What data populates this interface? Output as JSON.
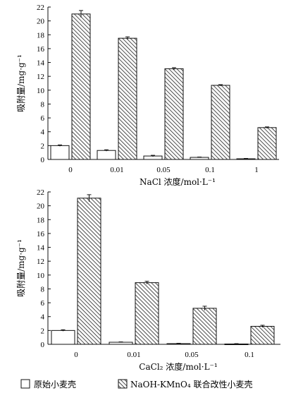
{
  "colors": {
    "axis": "#111111",
    "bar_plain_fill": "#ffffff",
    "bar_hatch": "#222222"
  },
  "legend": {
    "items": [
      {
        "label": "原始小麦壳",
        "style": "plain"
      },
      {
        "label": "NaOH-KMnO₄ 联合改性小麦壳",
        "style": "hatched"
      }
    ]
  },
  "chart_data": [
    {
      "type": "bar",
      "categories": [
        "0",
        "0.01",
        "0.05",
        "0.1",
        "1"
      ],
      "series": [
        {
          "name": "原始小麦壳",
          "values": [
            2.0,
            1.3,
            0.5,
            0.3,
            0.1
          ],
          "errors": [
            0.1,
            0.1,
            0.1,
            0.05,
            0.05
          ]
        },
        {
          "name": "NaOH-KMnO₄ 联合改性小麦壳",
          "values": [
            21.0,
            17.5,
            13.1,
            10.7,
            4.6
          ],
          "errors": [
            0.5,
            0.2,
            0.15,
            0.1,
            0.1
          ]
        }
      ],
      "xlabel": "NaCl 浓度/mol·L⁻¹",
      "ylabel": "吸附量/mg·g⁻¹",
      "ylim": [
        0,
        22
      ],
      "yticks": [
        "0",
        "2",
        "4",
        "6",
        "8",
        "10",
        "12",
        "14",
        "16",
        "18",
        "20",
        "22"
      ]
    },
    {
      "type": "bar",
      "categories": [
        "0",
        "0.01",
        "0.05",
        "0.1"
      ],
      "series": [
        {
          "name": "原始小麦壳",
          "values": [
            2.0,
            0.3,
            0.1,
            0.05
          ],
          "errors": [
            0.1,
            0.05,
            0.05,
            0.05
          ]
        },
        {
          "name": "NaOH-KMnO₄ 联合改性小麦壳",
          "values": [
            21.1,
            8.9,
            5.2,
            2.6
          ],
          "errors": [
            0.5,
            0.2,
            0.3,
            0.15
          ]
        }
      ],
      "xlabel": "CaCl₂ 浓度/mol·L⁻¹",
      "ylabel": "吸附量/mg·g⁻¹",
      "ylim": [
        0,
        22
      ],
      "yticks": [
        "0",
        "2",
        "4",
        "6",
        "8",
        "10",
        "12",
        "14",
        "16",
        "18",
        "20",
        "22"
      ]
    }
  ]
}
